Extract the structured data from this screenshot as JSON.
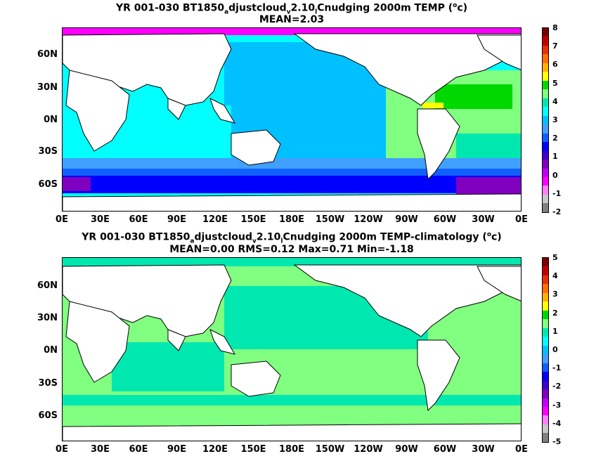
{
  "panel_top": {
    "title_prefix": "YR 001-030 BT1850",
    "title_sub1": "a",
    "title_mid": "djustcloud",
    "title_sub2": "v",
    "title_mid2": "2.10",
    "title_sub3": "l",
    "title_suffix": "Cnudging 2000m TEMP (",
    "title_sup": "o",
    "title_end": "c)",
    "stats": "MEAN=2.03",
    "colorbar_labels": [
      "8",
      "7",
      "6",
      "5",
      "4",
      "3",
      "2",
      "1",
      "0",
      "-1",
      "-2"
    ],
    "colorbar_colors": [
      "#7a0000",
      "#c00000",
      "#e83000",
      "#ff7000",
      "#ffb000",
      "#ffff00",
      "#00d800",
      "#80ff80",
      "#00e8b0",
      "#00ffff",
      "#00c0ff",
      "#40a0ff",
      "#1060ff",
      "#0000ff",
      "#4000d0",
      "#8000c0",
      "#c000ff",
      "#ff00ff",
      "#ff80ff",
      "#c8c8c8",
      "#808080"
    ]
  },
  "panel_bottom": {
    "title_prefix": "YR 001-030 BT1850",
    "title_sub1": "a",
    "title_mid": "djustcloud",
    "title_sub2": "v",
    "title_mid2": "2.10",
    "title_sub3": "l",
    "title_suffix": "Cnudging 2000m TEMP-climatology (",
    "title_sup": "o",
    "title_end": "c)",
    "stats": "MEAN=0.00   RMS=0.12   Max=0.71   Min=-1.18",
    "colorbar_labels": [
      "5",
      "4",
      "3",
      "2",
      "1",
      "0",
      "-1",
      "-2",
      "-3",
      "-4",
      "-5"
    ],
    "colorbar_colors": [
      "#7a0000",
      "#c00000",
      "#e83000",
      "#ff7000",
      "#ffb000",
      "#ffff00",
      "#00d800",
      "#80ff80",
      "#00e8b0",
      "#00ffff",
      "#00c0ff",
      "#40a0ff",
      "#1060ff",
      "#0000ff",
      "#4000d0",
      "#8000c0",
      "#c000ff",
      "#ff00ff",
      "#ff80ff",
      "#c8c8c8",
      "#808080"
    ]
  },
  "lat_labels": [
    "60N",
    "30N",
    "0N",
    "30S",
    "60S"
  ],
  "lon_labels": [
    "0E",
    "30E",
    "60E",
    "90E",
    "120E",
    "150E",
    "180E",
    "150W",
    "120W",
    "90W",
    "60W",
    "30W",
    "0E"
  ],
  "colors": {
    "land": "#ffffff",
    "cyan": "#00ffff",
    "sky": "#00c0ff",
    "mid_blue": "#40a0ff",
    "blue": "#1060ff",
    "deep_blue": "#0000ff",
    "purple": "#8000c0",
    "magenta": "#ff00ff",
    "light_green": "#80ff80",
    "green": "#00d800",
    "teal": "#00e8b0",
    "yellow": "#ffff00",
    "grey": "#c8c8c8"
  }
}
